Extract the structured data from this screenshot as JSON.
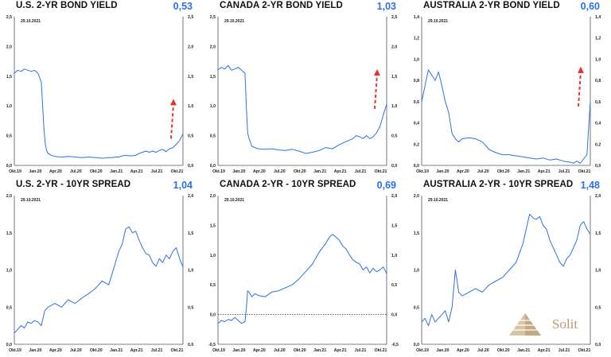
{
  "colors": {
    "line": "#2f6fe8",
    "arrow": "#e8322b",
    "value": "#2f6fe8",
    "logo": "#b89870"
  },
  "logo": {
    "text": "Solit",
    "icon": "pyramid-icon"
  },
  "chart_data": [
    {
      "type": "line",
      "title": "U.S. 2-YR BOND YIELD",
      "value_label": "0,53",
      "date": "29.10.2021",
      "xticks": [
        "Okt.19",
        "Jan.20",
        "Apr.20",
        "Jul.20",
        "Okt.20",
        "Jan.21",
        "Apr.21",
        "Jul.21",
        "Okt.21"
      ],
      "yticks": [
        "0,0",
        "0,5",
        "1,0",
        "1,5",
        "2,0",
        "2,5"
      ],
      "ylim": [
        0,
        2.5
      ],
      "arrow": true,
      "series": [
        {
          "x": [
            0,
            0.5,
            1,
            1.5,
            2,
            2.5,
            3,
            3.5,
            4,
            4.2,
            4.4,
            4.6,
            4.8,
            5,
            5.5,
            6,
            7,
            8,
            9,
            10,
            11,
            12,
            13,
            14,
            14.5,
            15,
            15.5,
            16,
            16.5,
            17,
            17.5,
            18,
            18.5,
            19,
            19.5,
            20,
            20.5,
            21,
            21.5,
            22,
            22.5,
            23,
            23.5,
            24,
            24.5,
            25
          ],
          "values": [
            1.55,
            1.6,
            1.58,
            1.62,
            1.6,
            1.58,
            1.6,
            1.55,
            1.4,
            1.0,
            0.6,
            0.35,
            0.25,
            0.2,
            0.17,
            0.15,
            0.14,
            0.15,
            0.14,
            0.13,
            0.14,
            0.13,
            0.12,
            0.13,
            0.13,
            0.14,
            0.14,
            0.16,
            0.17,
            0.16,
            0.16,
            0.17,
            0.2,
            0.22,
            0.24,
            0.22,
            0.24,
            0.22,
            0.25,
            0.27,
            0.23,
            0.28,
            0.3,
            0.35,
            0.42,
            0.53
          ]
        }
      ]
    },
    {
      "type": "line",
      "title": "CANADA 2-YR BOND YIELD",
      "value_label": "1,03",
      "date": "29.10.2021",
      "xticks": [
        "Okt.19",
        "Jan.20",
        "Apr.20",
        "Jul.20",
        "Okt.20",
        "Jan.21",
        "Apr.21",
        "Jul.21",
        "Okt.21"
      ],
      "yticks": [
        "0,0",
        "0,5",
        "1,0",
        "1,5",
        "2,0",
        "2,5"
      ],
      "ylim": [
        0,
        2.5
      ],
      "arrow": true,
      "series": [
        {
          "x": [
            0,
            0.5,
            1,
            1.5,
            2,
            2.5,
            3,
            3.5,
            4,
            4.2,
            4.4,
            4.6,
            4.8,
            5,
            5.5,
            6,
            7,
            8,
            9,
            10,
            11,
            12,
            13,
            14,
            15,
            16,
            17,
            18,
            19,
            20,
            20.5,
            21,
            21.5,
            22,
            22.5,
            23,
            23.5,
            24,
            24.5,
            25
          ],
          "values": [
            1.6,
            1.65,
            1.62,
            1.68,
            1.6,
            1.62,
            1.65,
            1.6,
            1.55,
            1.0,
            0.55,
            0.45,
            0.4,
            0.32,
            0.3,
            0.28,
            0.27,
            0.28,
            0.26,
            0.25,
            0.27,
            0.24,
            0.2,
            0.22,
            0.25,
            0.3,
            0.28,
            0.35,
            0.4,
            0.45,
            0.5,
            0.48,
            0.45,
            0.5,
            0.45,
            0.48,
            0.55,
            0.65,
            0.85,
            1.03
          ]
        }
      ]
    },
    {
      "type": "line",
      "title": "AUSTRALIA 2-YR BOND YIELD",
      "value_label": "0,60",
      "date": "29.10.2021",
      "xticks": [
        "Okt.19",
        "Jan.20",
        "Apr.20",
        "Jul.20",
        "Okt.20",
        "Jan.21",
        "Apr.21",
        "Jul.21",
        "Okt.21"
      ],
      "yticks": [
        "0,0",
        "0,2",
        "0,4",
        "0,6",
        "0,8",
        "1,0",
        "1,2",
        "1,4"
      ],
      "ylim": [
        0,
        1.4
      ],
      "arrow": true,
      "series": [
        {
          "x": [
            0,
            0.5,
            1,
            1.5,
            2,
            2.5,
            3,
            3.5,
            4,
            4.5,
            5,
            5.5,
            6,
            7,
            8,
            9,
            10,
            11,
            12,
            13,
            14,
            15,
            16,
            17,
            18,
            19,
            20,
            21,
            22,
            22.5,
            23,
            23.5,
            24,
            24.5,
            25
          ],
          "values": [
            0.6,
            0.75,
            0.9,
            0.85,
            0.8,
            0.88,
            0.75,
            0.6,
            0.5,
            0.3,
            0.25,
            0.22,
            0.25,
            0.26,
            0.25,
            0.22,
            0.15,
            0.12,
            0.1,
            0.1,
            0.09,
            0.08,
            0.07,
            0.06,
            0.07,
            0.05,
            0.06,
            0.04,
            0.03,
            0.02,
            0.04,
            0.02,
            0.06,
            0.1,
            0.6
          ]
        }
      ]
    },
    {
      "type": "line",
      "title": "U.S. 2-YR - 10YR SPREAD",
      "value_label": "1,04",
      "date": "29.10.2021",
      "xticks": [
        "Okt.19",
        "Jan.20",
        "Apr.20",
        "Jul.20",
        "Okt.20",
        "Jan.21",
        "Apr.21",
        "Jul.21",
        "Okt.21"
      ],
      "yticks": [
        "0,0",
        "0,5",
        "1,0",
        "1,5",
        "2,0"
      ],
      "ylim": [
        0,
        2.0
      ],
      "arrow": false,
      "series": [
        {
          "x": [
            0,
            0.5,
            1,
            1.5,
            2,
            2.5,
            3,
            3.5,
            4,
            4.5,
            5,
            6,
            7,
            8,
            9,
            10,
            11,
            12,
            13,
            14,
            14.5,
            15,
            15.5,
            16,
            16.5,
            17,
            17.5,
            18,
            18.5,
            19,
            19.5,
            20,
            20.5,
            21,
            21.5,
            22,
            22.5,
            23,
            23.5,
            24,
            24.5,
            25
          ],
          "values": [
            0.15,
            0.2,
            0.25,
            0.22,
            0.3,
            0.28,
            0.32,
            0.3,
            0.25,
            0.45,
            0.5,
            0.55,
            0.5,
            0.6,
            0.55,
            0.62,
            0.68,
            0.75,
            0.85,
            0.8,
            0.95,
            1.1,
            1.25,
            1.35,
            1.55,
            1.58,
            1.5,
            1.52,
            1.4,
            1.3,
            1.22,
            1.2,
            1.1,
            1.05,
            1.15,
            1.1,
            1.2,
            1.15,
            1.25,
            1.3,
            1.15,
            1.04
          ]
        }
      ]
    },
    {
      "type": "line",
      "title": "CANADA 2-YR - 10YR SPREAD",
      "value_label": "0,69",
      "date": "29.10.2021",
      "xticks": [
        "Okt.19",
        "Jan.20",
        "Apr.20",
        "Jul.20",
        "Okt.20",
        "Jan.21",
        "Apr.21",
        "Jul.21",
        "Okt.21"
      ],
      "yticks": [
        "-0,5",
        "0,0",
        "0,5",
        "1,0",
        "1,5",
        "2,0"
      ],
      "ylim": [
        -0.5,
        2.0
      ],
      "arrow": false,
      "zero_line": true,
      "series": [
        {
          "x": [
            0,
            0.5,
            1,
            1.5,
            2,
            2.5,
            3,
            3.5,
            4,
            4.2,
            4.4,
            4.6,
            5,
            5.5,
            6,
            7,
            8,
            9,
            10,
            11,
            12,
            13,
            14,
            15,
            16,
            16.5,
            17,
            17.5,
            18,
            18.5,
            19,
            19.5,
            20,
            20.5,
            21,
            21.5,
            22,
            22.5,
            23,
            23.5,
            24,
            24.5,
            25
          ],
          "values": [
            -0.15,
            -0.1,
            -0.12,
            -0.08,
            -0.1,
            -0.05,
            -0.1,
            -0.15,
            -0.12,
            0.1,
            0.4,
            0.38,
            0.3,
            0.35,
            0.32,
            0.3,
            0.38,
            0.4,
            0.45,
            0.5,
            0.6,
            0.72,
            0.85,
            1.05,
            1.2,
            1.3,
            1.35,
            1.3,
            1.25,
            1.15,
            1.1,
            1.0,
            0.92,
            0.88,
            0.85,
            0.75,
            0.8,
            0.7,
            0.78,
            0.72,
            0.75,
            0.8,
            0.69
          ]
        }
      ]
    },
    {
      "type": "line",
      "title": "AUSTRALIA 2-YR - 10YR SPREAD",
      "value_label": "1,48",
      "date": "29.10.2021",
      "xticks": [
        "Okt.19",
        "Jan.20",
        "Apr.20",
        "Jul.20",
        "Okt.20",
        "Jan.21",
        "Apr.21",
        "Jul.21",
        "Okt.21"
      ],
      "yticks": [
        "0,0",
        "0,5",
        "1,0",
        "1,5",
        "2,0"
      ],
      "ylim": [
        0,
        2.0
      ],
      "arrow": false,
      "series": [
        {
          "x": [
            0,
            0.5,
            1,
            1.5,
            2,
            2.5,
            3,
            3.5,
            4,
            4.5,
            5,
            5.5,
            6,
            7,
            8,
            9,
            10,
            11,
            12,
            13,
            14,
            15,
            15.5,
            16,
            16.5,
            17,
            17.5,
            18,
            18.5,
            19,
            19.5,
            20,
            20.5,
            21,
            21.5,
            22,
            22.5,
            23,
            23.5,
            24,
            24.5,
            25
          ],
          "values": [
            0.3,
            0.35,
            0.25,
            0.4,
            0.3,
            0.35,
            0.4,
            0.45,
            0.3,
            0.5,
            1.0,
            0.7,
            0.65,
            0.7,
            0.75,
            0.7,
            0.8,
            0.85,
            0.9,
            1.0,
            1.1,
            1.35,
            1.55,
            1.75,
            1.7,
            1.68,
            1.72,
            1.6,
            1.55,
            1.4,
            1.3,
            1.2,
            1.1,
            1.05,
            1.15,
            1.2,
            1.3,
            1.4,
            1.6,
            1.65,
            1.55,
            1.48
          ]
        }
      ]
    }
  ]
}
